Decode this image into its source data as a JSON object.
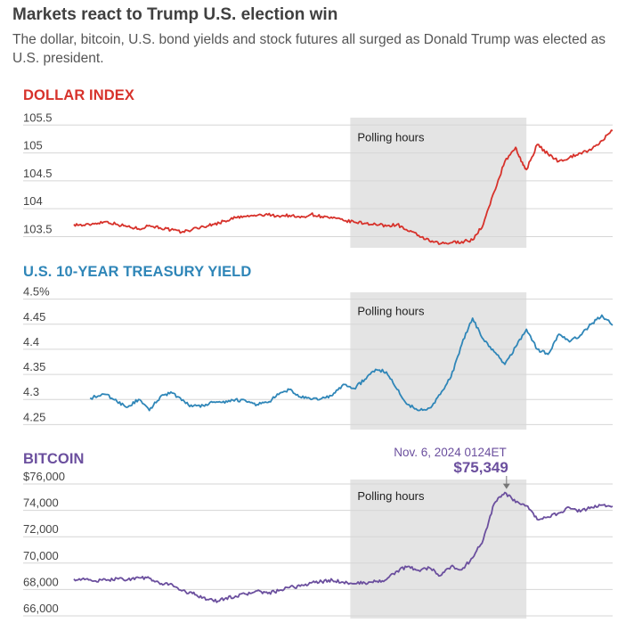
{
  "header": {
    "title": "Markets react to Trump U.S. election win",
    "subtitle": "The dollar, bitcoin, U.S. bond yields and stock futures all surged as Donald Trump was elected as U.S. president."
  },
  "polling_label": "Polling hours",
  "chart_data": [
    {
      "type": "line",
      "title": "DOLLAR INDEX",
      "color": "#d7322b",
      "ylim": [
        103.3,
        105.6
      ],
      "yticks": [
        103.5,
        104,
        104.5,
        105,
        105.5
      ],
      "ytick_labels": [
        "103.5",
        "104",
        "104.5",
        "105",
        "105.5"
      ],
      "x_range": [
        0,
        100
      ],
      "polling_window": [
        51.3,
        84.0
      ],
      "series": [
        {
          "x": [
            0,
            2,
            4,
            6,
            8,
            10,
            12,
            14,
            16,
            18,
            20,
            22,
            24,
            26,
            28,
            30,
            32,
            34,
            36,
            38,
            40,
            42,
            44,
            46,
            48,
            50,
            52,
            54,
            56,
            58,
            60,
            62,
            64,
            66,
            68,
            70,
            72,
            74,
            76,
            78,
            80,
            82,
            83,
            84,
            86,
            88,
            90,
            92,
            94,
            96,
            98,
            100
          ],
          "y": [
            103.72,
            103.7,
            103.74,
            103.77,
            103.72,
            103.68,
            103.64,
            103.7,
            103.66,
            103.62,
            103.58,
            103.63,
            103.68,
            103.72,
            103.78,
            103.84,
            103.86,
            103.88,
            103.89,
            103.87,
            103.88,
            103.84,
            103.9,
            103.86,
            103.83,
            103.79,
            103.76,
            103.74,
            103.72,
            103.69,
            103.72,
            103.6,
            103.52,
            103.42,
            103.37,
            103.39,
            103.41,
            103.44,
            103.72,
            104.3,
            104.85,
            105.1,
            104.85,
            104.7,
            105.15,
            104.98,
            104.85,
            104.92,
            105.0,
            105.05,
            105.22,
            105.4
          ]
        }
      ]
    },
    {
      "type": "line",
      "title": "U.S. 10-YEAR TREASURY YIELD",
      "color": "#2f86b8",
      "ylim": [
        4.24,
        4.51
      ],
      "yticks": [
        4.25,
        4.3,
        4.35,
        4.4,
        4.45,
        4.5
      ],
      "ytick_labels": [
        "4.25",
        "4.3",
        "4.35",
        "4.4",
        "4.45",
        "4.5%"
      ],
      "x_range": [
        0,
        100
      ],
      "polling_window": [
        51.3,
        84.0
      ],
      "series": [
        {
          "x": [
            3,
            6,
            8,
            10,
            12,
            14,
            16,
            18,
            20,
            22,
            24,
            26,
            28,
            30,
            32,
            34,
            36,
            38,
            40,
            42,
            44,
            46,
            48,
            50,
            52,
            54,
            56,
            58,
            60,
            62,
            64,
            66,
            68,
            70,
            72,
            74,
            76,
            78,
            80,
            82,
            84,
            86,
            88,
            90,
            92,
            94,
            96,
            98,
            100
          ],
          "y": [
            4.303,
            4.31,
            4.296,
            4.285,
            4.3,
            4.278,
            4.305,
            4.315,
            4.298,
            4.286,
            4.288,
            4.295,
            4.293,
            4.3,
            4.296,
            4.29,
            4.294,
            4.31,
            4.32,
            4.305,
            4.3,
            4.302,
            4.308,
            4.33,
            4.322,
            4.34,
            4.36,
            4.355,
            4.32,
            4.29,
            4.278,
            4.283,
            4.31,
            4.345,
            4.41,
            4.462,
            4.42,
            4.395,
            4.37,
            4.405,
            4.44,
            4.4,
            4.39,
            4.43,
            4.415,
            4.428,
            4.45,
            4.468,
            4.448
          ]
        }
      ]
    },
    {
      "type": "line",
      "title": "BITCOIN",
      "color": "#6b4f9e",
      "ylim": [
        65800,
        76200
      ],
      "yticks": [
        66000,
        68000,
        70000,
        72000,
        74000,
        76000
      ],
      "ytick_labels": [
        "66,000",
        "68,000",
        "70,000",
        "72,000",
        "74,000",
        "$76,000"
      ],
      "x_range": [
        0,
        100
      ],
      "polling_window": [
        51.3,
        84.0
      ],
      "annotation": {
        "date_label": "Nov. 6, 2024 0124ET",
        "value_label": "$75,349",
        "x": 80.3,
        "y": 75349
      },
      "series": [
        {
          "x": [
            0,
            2,
            4,
            6,
            8,
            10,
            12,
            14,
            16,
            18,
            20,
            22,
            24,
            26,
            28,
            30,
            32,
            34,
            36,
            38,
            40,
            42,
            44,
            46,
            48,
            50,
            52,
            54,
            56,
            58,
            60,
            62,
            64,
            66,
            68,
            70,
            72,
            74,
            76,
            78,
            80,
            82,
            84,
            86,
            88,
            90,
            92,
            94,
            96,
            98,
            100
          ],
          "y": [
            68800,
            68750,
            68650,
            68700,
            68850,
            68750,
            68900,
            68850,
            68400,
            68450,
            67900,
            67700,
            67400,
            67100,
            67300,
            67500,
            67650,
            67900,
            67700,
            67900,
            68150,
            68250,
            68500,
            68600,
            68700,
            68550,
            68450,
            68500,
            68600,
            68750,
            69400,
            69750,
            69450,
            69650,
            69050,
            69750,
            69500,
            70400,
            71800,
            74500,
            75349,
            74600,
            74350,
            73300,
            73500,
            73800,
            74200,
            73900,
            74250,
            74400,
            74300
          ]
        }
      ]
    }
  ]
}
